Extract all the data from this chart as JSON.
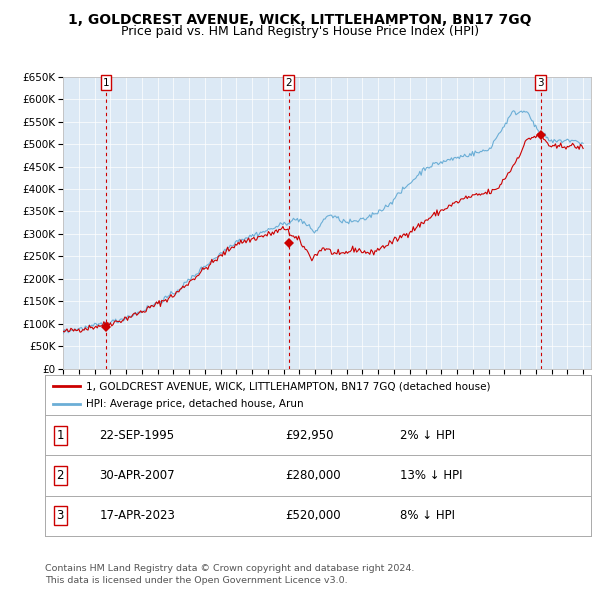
{
  "title": "1, GOLDCREST AVENUE, WICK, LITTLEHAMPTON, BN17 7GQ",
  "subtitle": "Price paid vs. HM Land Registry's House Price Index (HPI)",
  "ylim": [
    0,
    650000
  ],
  "yticks": [
    0,
    50000,
    100000,
    150000,
    200000,
    250000,
    300000,
    350000,
    400000,
    450000,
    500000,
    550000,
    600000,
    650000
  ],
  "ytick_labels": [
    "£0",
    "£50K",
    "£100K",
    "£150K",
    "£200K",
    "£250K",
    "£300K",
    "£350K",
    "£400K",
    "£450K",
    "£500K",
    "£550K",
    "£600K",
    "£650K"
  ],
  "xlim_start": 1993.0,
  "xlim_end": 2026.5,
  "xtick_years": [
    1993,
    1994,
    1995,
    1996,
    1997,
    1998,
    1999,
    2000,
    2001,
    2002,
    2003,
    2004,
    2005,
    2006,
    2007,
    2008,
    2009,
    2010,
    2011,
    2012,
    2013,
    2014,
    2015,
    2016,
    2017,
    2018,
    2019,
    2020,
    2021,
    2022,
    2023,
    2024,
    2025,
    2026
  ],
  "sale_dates": [
    1995.73,
    2007.33,
    2023.3
  ],
  "sale_prices": [
    92950,
    280000,
    520000
  ],
  "sale_labels": [
    "1",
    "2",
    "3"
  ],
  "hpi_color": "#6baed6",
  "price_color": "#cc0000",
  "vline_color": "#cc0000",
  "plot_bg_color": "#dce9f5",
  "legend_entry1": "1, GOLDCREST AVENUE, WICK, LITTLEHAMPTON, BN17 7GQ (detached house)",
  "legend_entry2": "HPI: Average price, detached house, Arun",
  "table_entries": [
    {
      "num": "1",
      "date": "22-SEP-1995",
      "price": "£92,950",
      "change": "2% ↓ HPI"
    },
    {
      "num": "2",
      "date": "30-APR-2007",
      "price": "£280,000",
      "change": "13% ↓ HPI"
    },
    {
      "num": "3",
      "date": "17-APR-2023",
      "price": "£520,000",
      "change": "8% ↓ HPI"
    }
  ],
  "footnote": "Contains HM Land Registry data © Crown copyright and database right 2024.\nThis data is licensed under the Open Government Licence v3.0.",
  "title_fontsize": 10,
  "subtitle_fontsize": 9,
  "tick_fontsize": 7.5,
  "legend_fontsize": 7.5,
  "table_fontsize": 8.5,
  "footnote_fontsize": 6.8
}
